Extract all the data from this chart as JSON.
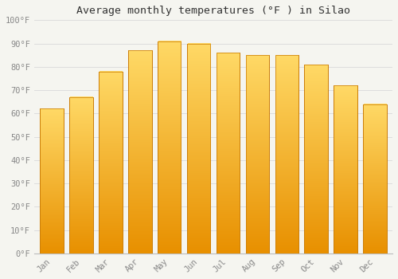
{
  "title": "Average monthly temperatures (°F ) in Silao",
  "months": [
    "Jan",
    "Feb",
    "Mar",
    "Apr",
    "May",
    "Jun",
    "Jul",
    "Aug",
    "Sep",
    "Oct",
    "Nov",
    "Dec"
  ],
  "values": [
    62,
    67,
    78,
    87,
    91,
    90,
    86,
    85,
    85,
    81,
    72,
    64
  ],
  "bar_color_top": "#FFD966",
  "bar_color_bottom": "#E89000",
  "bar_edge_color": "#C87800",
  "background_color": "#F5F5F0",
  "grid_color": "#DDDDDD",
  "tick_label_color": "#888888",
  "title_color": "#333333",
  "ylim": [
    0,
    100
  ],
  "yticks": [
    0,
    10,
    20,
    30,
    40,
    50,
    60,
    70,
    80,
    90,
    100
  ],
  "ytick_labels": [
    "0°F",
    "10°F",
    "20°F",
    "30°F",
    "40°F",
    "50°F",
    "60°F",
    "70°F",
    "80°F",
    "90°F",
    "100°F"
  ],
  "font_family": "monospace",
  "bar_width": 0.8
}
